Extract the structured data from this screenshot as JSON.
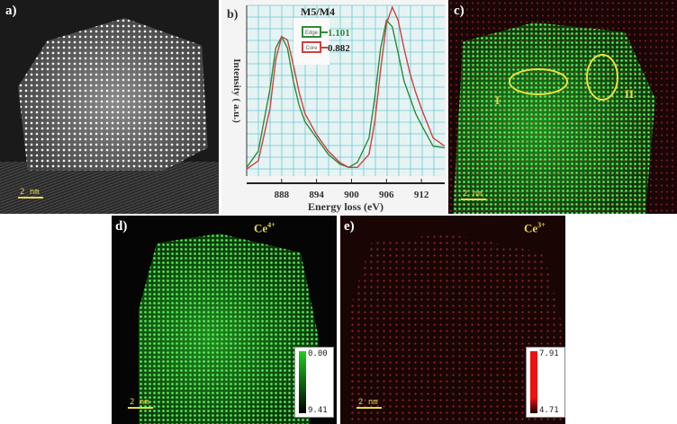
{
  "panels": {
    "a": {
      "label": "a)",
      "scale": "2 nm"
    },
    "b": {
      "label": "b)"
    },
    "c": {
      "label": "c)",
      "scale": "2 nm",
      "regions": [
        "I",
        "II"
      ]
    },
    "d": {
      "label": "d)",
      "scale": "2 nm",
      "ion": "Ce",
      "ion_sup": "4+",
      "colorbar": {
        "top": "0.00",
        "bottom": "9.41",
        "color": "#22cc22"
      }
    },
    "e": {
      "label": "e)",
      "scale": "2 nm",
      "ion": "Ce",
      "ion_sup": "3+",
      "colorbar": {
        "top": "7.91",
        "bottom": "4.71",
        "color": "#ee1111"
      }
    }
  },
  "chart_data": {
    "type": "line",
    "title": "M5/M4",
    "xlabel": "Energy loss (eV)",
    "ylabel": "Intensity ( a.u.)",
    "xlim": [
      882,
      916
    ],
    "ylim": [
      0,
      1
    ],
    "xticks": [
      888,
      894,
      900,
      906,
      912
    ],
    "grid": true,
    "legend_placement": "top-left",
    "series": [
      {
        "name": "Edge",
        "ratio": "1.101",
        "color": "#2e8b3a",
        "x": [
          882,
          884,
          886,
          887,
          888,
          889,
          890,
          891,
          892,
          894,
          896,
          898,
          899.5,
          901,
          903,
          904,
          905,
          906,
          907,
          908,
          909,
          910,
          911,
          912,
          914,
          916
        ],
        "y": [
          0.02,
          0.12,
          0.5,
          0.75,
          0.82,
          0.75,
          0.55,
          0.4,
          0.3,
          0.2,
          0.1,
          0.04,
          0.02,
          0.05,
          0.2,
          0.45,
          0.75,
          0.92,
          0.88,
          0.72,
          0.55,
          0.45,
          0.35,
          0.28,
          0.15,
          0.14
        ]
      },
      {
        "name": "Core",
        "ratio": "0.882",
        "color": "#d04040",
        "x": [
          882,
          884,
          886,
          887,
          888,
          889,
          890,
          891,
          892,
          894,
          896,
          898,
          899.5,
          901,
          903,
          904,
          905,
          906,
          907,
          908,
          909,
          910,
          911,
          912,
          914,
          916
        ],
        "y": [
          0.01,
          0.06,
          0.38,
          0.68,
          0.82,
          0.8,
          0.65,
          0.48,
          0.35,
          0.22,
          0.12,
          0.05,
          0.02,
          0.02,
          0.1,
          0.3,
          0.62,
          0.9,
          1.0,
          0.92,
          0.75,
          0.6,
          0.48,
          0.38,
          0.2,
          0.15
        ]
      }
    ]
  }
}
